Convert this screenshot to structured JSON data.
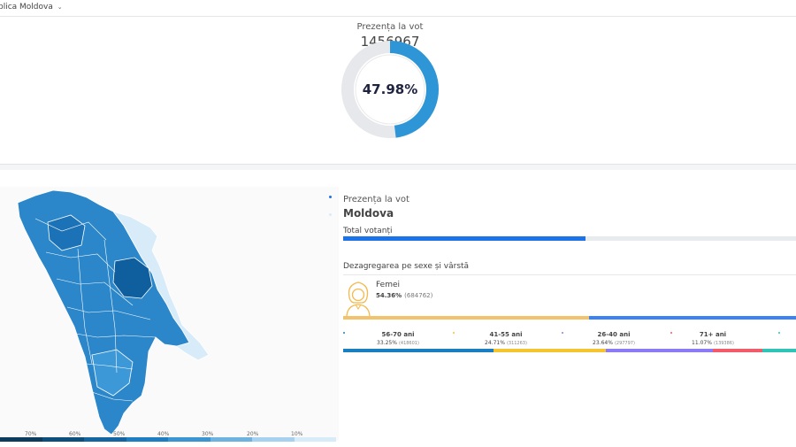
{
  "topbar": {
    "region_select": "blica Moldova",
    "caret": "⌄"
  },
  "turnout": {
    "label": "Prezența la vot",
    "count": "1456967",
    "percent_text": "47.98%",
    "percent": 47.98,
    "colors": {
      "fill": "#2e96d6",
      "track": "#e6e8eb"
    }
  },
  "map": {
    "legend": [
      "70%",
      "60%",
      "50%",
      "40%",
      "30%",
      "20%",
      "10%"
    ],
    "legend_colors": [
      "#0b3c5d",
      "#0d4f7c",
      "#1565a0",
      "#1d7fc2",
      "#3a95d1",
      "#6eb2e0",
      "#a6d1ef",
      "#d8ebf8"
    ]
  },
  "details": {
    "title": "Prezența la vot",
    "region": "Moldova",
    "total_label": "Total votanți",
    "total_fraction": 0.535,
    "disaggregation_label": "Dezagregarea pe sexe și vârstă",
    "female": {
      "label": "Femei",
      "percent": "54.36%",
      "count": "(684762)",
      "fraction": 0.5436,
      "icon": "woman-avatar-icon",
      "colors": {
        "female": "#f2c36b",
        "male": "#3b82f6"
      }
    },
    "age_groups": [
      {
        "label": "56-70 ani",
        "percent": "33.25%",
        "count": "(418601)",
        "fraction": 0.3325,
        "color": "#1a7fc1"
      },
      {
        "label": "41-55 ani",
        "percent": "24.71%",
        "count": "(311263)",
        "fraction": 0.2471,
        "color": "#f6c431"
      },
      {
        "label": "26-40 ani",
        "percent": "23.64%",
        "count": "(297797)",
        "fraction": 0.2364,
        "color": "#8b7cf6"
      },
      {
        "label": "71+ ani",
        "percent": "11.07%",
        "count": "(139386)",
        "fraction": 0.1107,
        "color": "#f25b6a"
      }
    ]
  }
}
